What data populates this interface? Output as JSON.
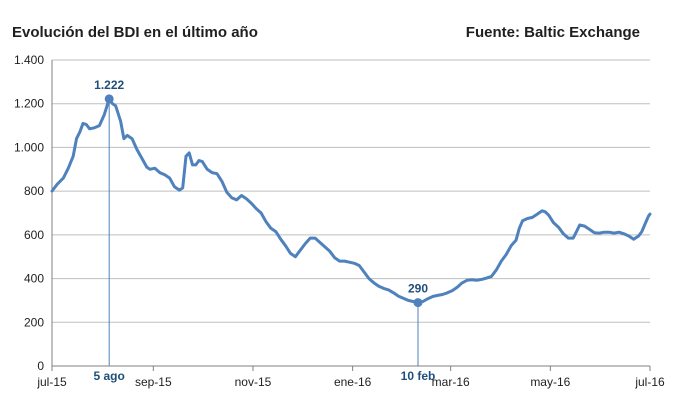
{
  "header": {
    "title": "Evolución del BDI en el último año",
    "source": "Fuente: Baltic Exchange"
  },
  "colors": {
    "line": "#4f81bd",
    "annotation": "#1f4e79",
    "grid": "#bfbfbf"
  },
  "chart_data": {
    "type": "line",
    "title": "Evolución del BDI en el último año",
    "xlabel": "",
    "ylabel": "",
    "ylim": [
      0,
      1400
    ],
    "yticks": [
      0,
      200,
      400,
      600,
      800,
      1000,
      1200,
      1400
    ],
    "ytick_labels": [
      "0",
      "200",
      "400",
      "600",
      "800",
      "1.000",
      "1.200",
      "1.400"
    ],
    "x_range": [
      "2015-07-01",
      "2016-07-01"
    ],
    "xticks": [
      {
        "date": "2015-07-01",
        "label": "jul-15"
      },
      {
        "date": "2015-09-01",
        "label": "sep-15"
      },
      {
        "date": "2015-11-01",
        "label": "nov-15"
      },
      {
        "date": "2016-01-01",
        "label": "ene-16"
      },
      {
        "date": "2016-03-01",
        "label": "mar-16"
      },
      {
        "date": "2016-05-01",
        "label": "may-16"
      },
      {
        "date": "2016-07-01",
        "label": "jul-16"
      }
    ],
    "grid": "horizontal",
    "series": [
      {
        "points": [
          [
            "2015-07-01",
            800
          ],
          [
            "2015-07-04",
            830
          ],
          [
            "2015-07-08",
            860
          ],
          [
            "2015-07-11",
            905
          ],
          [
            "2015-07-14",
            960
          ],
          [
            "2015-07-16",
            1040
          ],
          [
            "2015-07-18",
            1070
          ],
          [
            "2015-07-20",
            1110
          ],
          [
            "2015-07-22",
            1105
          ],
          [
            "2015-07-24",
            1085
          ],
          [
            "2015-07-27",
            1090
          ],
          [
            "2015-07-30",
            1100
          ],
          [
            "2015-08-02",
            1150
          ],
          [
            "2015-08-05",
            1222
          ],
          [
            "2015-08-07",
            1200
          ],
          [
            "2015-08-09",
            1190
          ],
          [
            "2015-08-12",
            1120
          ],
          [
            "2015-08-14",
            1040
          ],
          [
            "2015-08-16",
            1055
          ],
          [
            "2015-08-19",
            1040
          ],
          [
            "2015-08-22",
            990
          ],
          [
            "2015-08-25",
            950
          ],
          [
            "2015-08-28",
            910
          ],
          [
            "2015-08-30",
            900
          ],
          [
            "2015-09-02",
            905
          ],
          [
            "2015-09-05",
            885
          ],
          [
            "2015-09-08",
            875
          ],
          [
            "2015-09-11",
            860
          ],
          [
            "2015-09-14",
            820
          ],
          [
            "2015-09-17",
            805
          ],
          [
            "2015-09-19",
            815
          ],
          [
            "2015-09-21",
            960
          ],
          [
            "2015-09-23",
            975
          ],
          [
            "2015-09-25",
            920
          ],
          [
            "2015-09-27",
            920
          ],
          [
            "2015-09-29",
            940
          ],
          [
            "2015-10-01",
            935
          ],
          [
            "2015-10-04",
            900
          ],
          [
            "2015-10-07",
            885
          ],
          [
            "2015-10-10",
            880
          ],
          [
            "2015-10-13",
            845
          ],
          [
            "2015-10-16",
            795
          ],
          [
            "2015-10-19",
            770
          ],
          [
            "2015-10-22",
            760
          ],
          [
            "2015-10-25",
            780
          ],
          [
            "2015-10-28",
            765
          ],
          [
            "2015-10-31",
            745
          ],
          [
            "2015-11-03",
            720
          ],
          [
            "2015-11-06",
            700
          ],
          [
            "2015-11-09",
            660
          ],
          [
            "2015-11-12",
            630
          ],
          [
            "2015-11-15",
            615
          ],
          [
            "2015-11-18",
            580
          ],
          [
            "2015-11-21",
            550
          ],
          [
            "2015-11-24",
            515
          ],
          [
            "2015-11-27",
            500
          ],
          [
            "2015-11-30",
            530
          ],
          [
            "2015-12-03",
            560
          ],
          [
            "2015-12-06",
            585
          ],
          [
            "2015-12-09",
            585
          ],
          [
            "2015-12-12",
            565
          ],
          [
            "2015-12-15",
            545
          ],
          [
            "2015-12-18",
            525
          ],
          [
            "2015-12-21",
            495
          ],
          [
            "2015-12-24",
            480
          ],
          [
            "2015-12-27",
            480
          ],
          [
            "2015-12-30",
            475
          ],
          [
            "2016-01-02",
            470
          ],
          [
            "2016-01-05",
            460
          ],
          [
            "2016-01-08",
            430
          ],
          [
            "2016-01-11",
            400
          ],
          [
            "2016-01-14",
            380
          ],
          [
            "2016-01-17",
            365
          ],
          [
            "2016-01-20",
            355
          ],
          [
            "2016-01-23",
            348
          ],
          [
            "2016-01-26",
            335
          ],
          [
            "2016-01-29",
            320
          ],
          [
            "2016-02-01",
            310
          ],
          [
            "2016-02-04",
            300
          ],
          [
            "2016-02-07",
            295
          ],
          [
            "2016-02-10",
            290
          ],
          [
            "2016-02-13",
            295
          ],
          [
            "2016-02-16",
            308
          ],
          [
            "2016-02-19",
            318
          ],
          [
            "2016-02-22",
            323
          ],
          [
            "2016-02-25",
            327
          ],
          [
            "2016-02-28",
            335
          ],
          [
            "2016-03-02",
            345
          ],
          [
            "2016-03-05",
            360
          ],
          [
            "2016-03-08",
            380
          ],
          [
            "2016-03-11",
            392
          ],
          [
            "2016-03-14",
            395
          ],
          [
            "2016-03-17",
            392
          ],
          [
            "2016-03-20",
            396
          ],
          [
            "2016-03-23",
            402
          ],
          [
            "2016-03-26",
            410
          ],
          [
            "2016-03-29",
            440
          ],
          [
            "2016-04-01",
            480
          ],
          [
            "2016-04-04",
            510
          ],
          [
            "2016-04-07",
            550
          ],
          [
            "2016-04-10",
            575
          ],
          [
            "2016-04-12",
            630
          ],
          [
            "2016-04-14",
            665
          ],
          [
            "2016-04-17",
            675
          ],
          [
            "2016-04-20",
            680
          ],
          [
            "2016-04-23",
            695
          ],
          [
            "2016-04-26",
            710
          ],
          [
            "2016-04-28",
            705
          ],
          [
            "2016-04-30",
            690
          ],
          [
            "2016-05-03",
            655
          ],
          [
            "2016-05-06",
            635
          ],
          [
            "2016-05-09",
            605
          ],
          [
            "2016-05-12",
            585
          ],
          [
            "2016-05-15",
            585
          ],
          [
            "2016-05-17",
            615
          ],
          [
            "2016-05-19",
            645
          ],
          [
            "2016-05-22",
            640
          ],
          [
            "2016-05-25",
            625
          ],
          [
            "2016-05-28",
            610
          ],
          [
            "2016-05-31",
            608
          ],
          [
            "2016-06-03",
            612
          ],
          [
            "2016-06-06",
            612
          ],
          [
            "2016-06-09",
            608
          ],
          [
            "2016-06-12",
            612
          ],
          [
            "2016-06-15",
            605
          ],
          [
            "2016-06-18",
            595
          ],
          [
            "2016-06-21",
            580
          ],
          [
            "2016-06-24",
            595
          ],
          [
            "2016-06-26",
            615
          ],
          [
            "2016-06-28",
            650
          ],
          [
            "2016-06-30",
            685
          ],
          [
            "2016-07-01",
            695
          ]
        ]
      }
    ],
    "annotations": [
      {
        "date": "2015-08-05",
        "value": 1222,
        "value_label": "1.222",
        "date_label": "5 ago"
      },
      {
        "date": "2016-02-10",
        "value": 290,
        "value_label": "290",
        "date_label": "10 feb"
      }
    ]
  }
}
